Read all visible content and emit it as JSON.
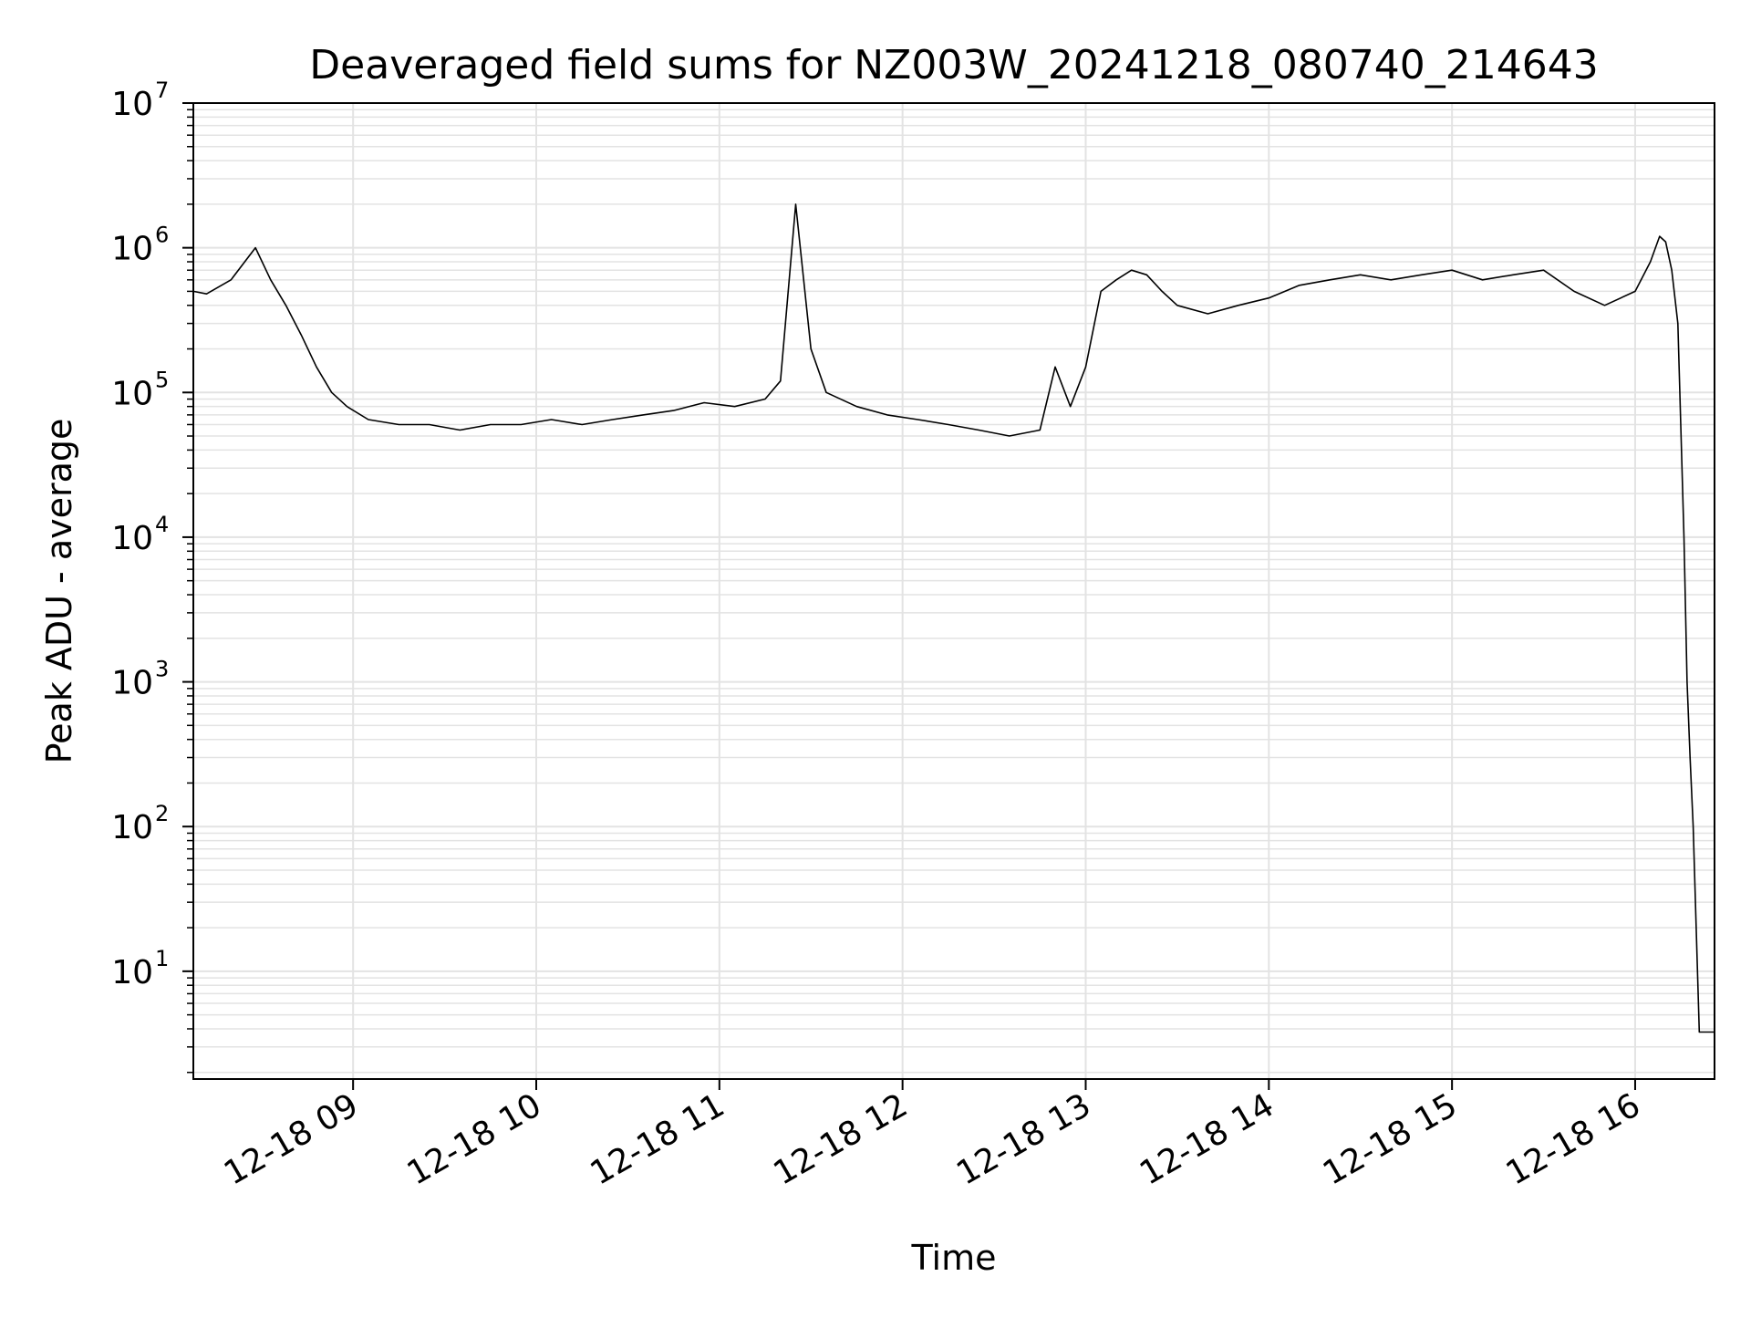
{
  "chart_data": {
    "type": "line",
    "title": "Deaveraged field sums for NZ003W_20241218_080740_214643",
    "xlabel": "Time",
    "ylabel": "Peak ADU - average",
    "yscale": "log",
    "ylim": [
      1.8,
      10000000
    ],
    "xlim": [
      "2024-12-18 08:07:40",
      "2024-12-18 16:26:00"
    ],
    "grid": true,
    "legend": "none",
    "line_color": "#000000",
    "grid_color": "#e3e3e3",
    "x_ticks": [
      {
        "value": "2024-12-18 09:00",
        "label": "12-18 09"
      },
      {
        "value": "2024-12-18 10:00",
        "label": "12-18 10"
      },
      {
        "value": "2024-12-18 11:00",
        "label": "12-18 11"
      },
      {
        "value": "2024-12-18 12:00",
        "label": "12-18 12"
      },
      {
        "value": "2024-12-18 13:00",
        "label": "12-18 13"
      },
      {
        "value": "2024-12-18 14:00",
        "label": "12-18 14"
      },
      {
        "value": "2024-12-18 15:00",
        "label": "12-18 15"
      },
      {
        "value": "2024-12-18 16:00",
        "label": "12-18 16"
      }
    ],
    "y_ticks": [
      {
        "value": 10,
        "base": "10",
        "exp": "1"
      },
      {
        "value": 100,
        "base": "10",
        "exp": "2"
      },
      {
        "value": 1000,
        "base": "10",
        "exp": "3"
      },
      {
        "value": 10000,
        "base": "10",
        "exp": "4"
      },
      {
        "value": 100000,
        "base": "10",
        "exp": "5"
      },
      {
        "value": 1000000,
        "base": "10",
        "exp": "6"
      },
      {
        "value": 10000000,
        "base": "10",
        "exp": "7"
      }
    ],
    "series": [
      {
        "x": [
          "2024-12-18 08:07:40",
          "2024-12-18 08:12",
          "2024-12-18 08:20",
          "2024-12-18 08:28",
          "2024-12-18 08:33",
          "2024-12-18 08:38",
          "2024-12-18 08:43",
          "2024-12-18 08:48",
          "2024-12-18 08:53",
          "2024-12-18 08:58",
          "2024-12-18 09:05",
          "2024-12-18 09:15",
          "2024-12-18 09:25",
          "2024-12-18 09:35",
          "2024-12-18 09:45",
          "2024-12-18 09:55",
          "2024-12-18 10:05",
          "2024-12-18 10:15",
          "2024-12-18 10:25",
          "2024-12-18 10:35",
          "2024-12-18 10:45",
          "2024-12-18 10:55",
          "2024-12-18 11:05",
          "2024-12-18 11:15",
          "2024-12-18 11:20",
          "2024-12-18 11:25",
          "2024-12-18 11:30",
          "2024-12-18 11:35",
          "2024-12-18 11:45",
          "2024-12-18 11:55",
          "2024-12-18 12:05",
          "2024-12-18 12:15",
          "2024-12-18 12:25",
          "2024-12-18 12:35",
          "2024-12-18 12:45",
          "2024-12-18 12:50",
          "2024-12-18 12:55",
          "2024-12-18 13:00",
          "2024-12-18 13:05",
          "2024-12-18 13:10",
          "2024-12-18 13:15",
          "2024-12-18 13:20",
          "2024-12-18 13:25",
          "2024-12-18 13:30",
          "2024-12-18 13:40",
          "2024-12-18 13:50",
          "2024-12-18 14:00",
          "2024-12-18 14:10",
          "2024-12-18 14:20",
          "2024-12-18 14:30",
          "2024-12-18 14:40",
          "2024-12-18 14:50",
          "2024-12-18 15:00",
          "2024-12-18 15:10",
          "2024-12-18 15:20",
          "2024-12-18 15:30",
          "2024-12-18 15:40",
          "2024-12-18 15:50",
          "2024-12-18 16:00",
          "2024-12-18 16:05",
          "2024-12-18 16:08",
          "2024-12-18 16:10",
          "2024-12-18 16:12",
          "2024-12-18 16:14",
          "2024-12-18 16:16",
          "2024-12-18 16:17",
          "2024-12-18 16:18",
          "2024-12-18 16:19",
          "2024-12-18 16:20",
          "2024-12-18 16:21",
          "2024-12-18 16:22",
          "2024-12-18 16:23",
          "2024-12-18 16:26"
        ],
        "y": [
          500000,
          480000,
          600000,
          1000000,
          600000,
          400000,
          250000,
          150000,
          100000,
          80000,
          65000,
          60000,
          60000,
          55000,
          60000,
          60000,
          65000,
          60000,
          65000,
          70000,
          75000,
          85000,
          80000,
          90000,
          120000,
          2000000,
          200000,
          100000,
          80000,
          70000,
          65000,
          60000,
          55000,
          50000,
          55000,
          150000,
          80000,
          150000,
          500000,
          600000,
          700000,
          650000,
          500000,
          400000,
          350000,
          400000,
          450000,
          550000,
          600000,
          650000,
          600000,
          650000,
          700000,
          600000,
          650000,
          700000,
          500000,
          400000,
          500000,
          800000,
          1200000,
          1100000,
          700000,
          300000,
          10000,
          1000,
          300,
          100,
          20,
          3.8,
          3.8,
          3.8,
          3.8
        ]
      }
    ]
  }
}
